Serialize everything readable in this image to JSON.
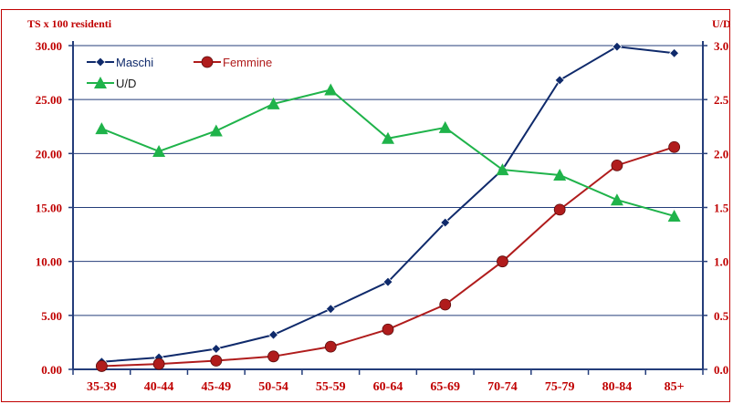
{
  "chart_data": {
    "type": "line",
    "ylabel": "TS x 100 residenti",
    "y2label": "U/D",
    "categories": [
      "35-39",
      "40-44",
      "45-49",
      "50-54",
      "55-59",
      "60-64",
      "65-69",
      "70-74",
      "75-79",
      "80-84",
      "85+"
    ],
    "y_ticks": [
      "0.00",
      "5.00",
      "10.00",
      "15.00",
      "20.00",
      "25.00",
      "30.00"
    ],
    "y2_ticks": [
      "0.0",
      "0.5",
      "1.0",
      "1.5",
      "2.0",
      "2.5",
      "3.0"
    ],
    "ylim": [
      0,
      30
    ],
    "y2lim": [
      0,
      3
    ],
    "grid": true,
    "legend_position": "top-left",
    "series": [
      {
        "name": "Maschi",
        "axis": "left",
        "color": "#0f2a6b",
        "marker": "diamond",
        "values": [
          0.7,
          1.1,
          1.9,
          3.2,
          5.6,
          8.1,
          13.6,
          18.5,
          26.8,
          29.9,
          29.3
        ]
      },
      {
        "name": "Femmine",
        "axis": "left",
        "color": "#b01c1c",
        "marker": "circle",
        "values": [
          0.3,
          0.5,
          0.8,
          1.2,
          2.1,
          3.7,
          6.0,
          10.0,
          14.8,
          18.9,
          20.6
        ]
      },
      {
        "name": "U/D",
        "axis": "right",
        "color": "#1fb34a",
        "marker": "triangle",
        "values": [
          2.23,
          2.02,
          2.21,
          2.46,
          2.59,
          2.14,
          2.24,
          1.85,
          1.8,
          1.57,
          1.42
        ]
      }
    ]
  }
}
